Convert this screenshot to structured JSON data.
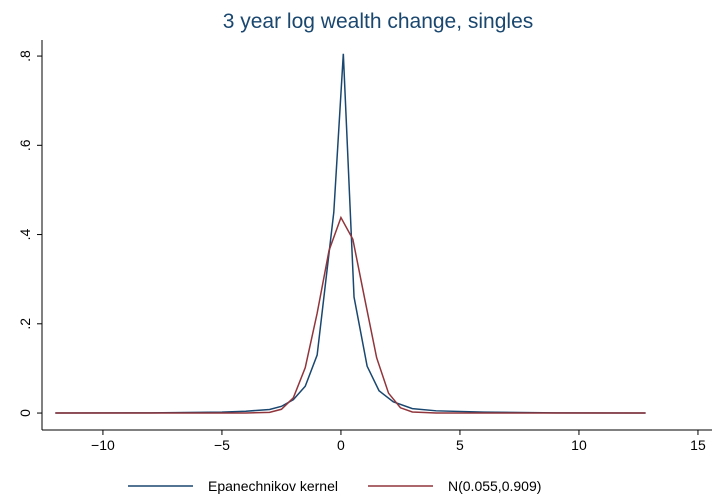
{
  "chart_data": {
    "type": "line",
    "title": "3 year log wealth change, singles",
    "series": [
      {
        "name": "Epanechnikov kernel",
        "color": "#1a476f",
        "x": [
          -12,
          -8,
          -5,
          -4,
          -3,
          -2.5,
          -2,
          -1.5,
          -1,
          -0.3,
          0.1,
          0.55,
          1.1,
          1.6,
          2.2,
          3,
          4,
          6,
          9,
          12.8
        ],
        "values": [
          0,
          0.0005,
          0.002,
          0.004,
          0.008,
          0.015,
          0.03,
          0.06,
          0.13,
          0.45,
          0.805,
          0.26,
          0.105,
          0.05,
          0.025,
          0.01,
          0.005,
          0.002,
          0.0005,
          0
        ]
      },
      {
        "name": "N(0.055,0.909)",
        "color": "#90353b",
        "x": [
          -12,
          -4,
          -3,
          -2.5,
          -2,
          -1.5,
          -1,
          -0.5,
          0,
          0.5,
          1,
          1.5,
          2,
          2.5,
          3,
          4,
          12.8
        ],
        "values": [
          0,
          2e-05,
          0.00155,
          0.00845,
          0.0341,
          0.1016,
          0.2237,
          0.3643,
          0.4381,
          0.3894,
          0.2557,
          0.124,
          0.0445,
          0.0118,
          0.00231,
          4e-05,
          0
        ]
      }
    ],
    "xlim": [
      -12.56,
      15.59
    ],
    "ylim": [
      -0.038,
      0.836
    ],
    "xticks": [
      {
        "value": -10,
        "label": "−10"
      },
      {
        "value": -5,
        "label": "−5"
      },
      0,
      5,
      10,
      15
    ],
    "yticks": [
      0,
      {
        "value": 0.2,
        "label": ".2"
      },
      {
        "value": 0.4,
        "label": ".4"
      },
      {
        "value": 0.6,
        "label": ".6"
      },
      {
        "value": 0.8,
        "label": ".8"
      }
    ]
  }
}
